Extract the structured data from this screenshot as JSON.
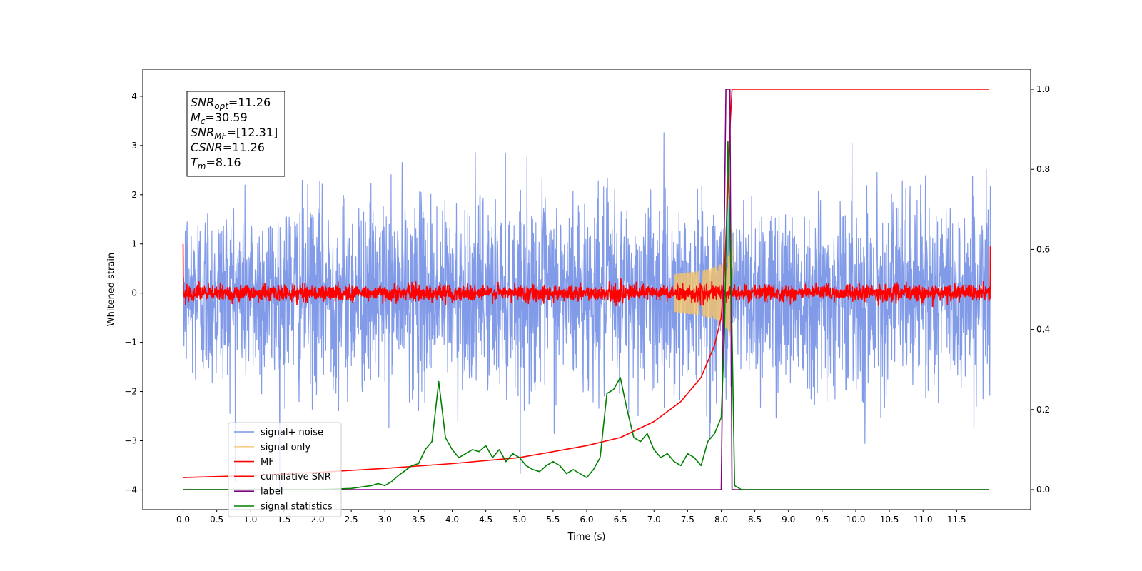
{
  "chart_data": {
    "type": "line",
    "title": "",
    "xlabel": "Time (s)",
    "ylabel": "Whitened strain",
    "xlim": [
      -0.6,
      12.6
    ],
    "ylim": [
      -4.4,
      4.55
    ],
    "y2lim": [
      -0.05,
      1.05
    ],
    "x_ticks": [
      "0.0",
      "0.5",
      "1.0",
      "1.5",
      "2.0",
      "2.5",
      "3.0",
      "3.5",
      "4.0",
      "4.5",
      "5.0",
      "5.5",
      "6.0",
      "6.5",
      "7.0",
      "7.5",
      "8.0",
      "8.5",
      "9.0",
      "9.5",
      "10.0",
      "10.5",
      "11.0",
      "11.5"
    ],
    "y_ticks": [
      "4",
      "3",
      "2",
      "1",
      "0",
      "−1",
      "−2",
      "−3",
      "−4"
    ],
    "y2_ticks": [
      "1.0",
      "0.8",
      "0.6",
      "0.4",
      "0.2",
      "0.0"
    ],
    "grid": false,
    "legend_position": "lower-left",
    "annotation": {
      "lines": [
        {
          "sym": "SNR",
          "sub": "opt",
          "value": "=11.26"
        },
        {
          "sym": "M",
          "sub": "c",
          "value": "=30.59"
        },
        {
          "sym": "SNR",
          "sub": "MF",
          "value": "=[12.31]"
        },
        {
          "sym": "CSNR",
          "sub": "",
          "value": "=11.26"
        },
        {
          "sym": "T",
          "sub": "m",
          "value": "=8.16"
        }
      ]
    },
    "series": [
      {
        "name": "signal+ noise",
        "axis": "left",
        "color": "#7b96e8",
        "kind": "noise",
        "x_range": [
          0,
          12
        ],
        "amplitude_std": 0.95
      },
      {
        "name": "signal only",
        "axis": "left",
        "color": "#f5c469",
        "kind": "chirp",
        "x_range": [
          7.3,
          8.2
        ],
        "peak_amplitude": 1.0
      },
      {
        "name": "MF",
        "axis": "left",
        "color": "#ff0000",
        "kind": "noise",
        "x_range": [
          0,
          12
        ],
        "amplitude_std": 0.08
      },
      {
        "name": "cumilative SNR",
        "axis": "right",
        "color": "#ff0000",
        "x": [
          0.0,
          1.0,
          2.0,
          3.0,
          4.0,
          5.0,
          6.0,
          6.5,
          7.0,
          7.4,
          7.7,
          7.9,
          8.0,
          8.05,
          8.1,
          8.13,
          8.16,
          9.0,
          10.0,
          11.0,
          11.98
        ],
        "y": [
          0.03,
          0.035,
          0.043,
          0.053,
          0.065,
          0.08,
          0.11,
          0.13,
          0.17,
          0.22,
          0.28,
          0.36,
          0.43,
          0.55,
          0.75,
          0.9,
          1.0,
          1.0,
          1.0,
          1.0,
          1.0
        ]
      },
      {
        "name": "label",
        "axis": "right",
        "color": "#800080",
        "x": [
          0.0,
          8.0,
          8.07,
          8.13,
          8.16,
          11.98
        ],
        "y": [
          0.0,
          0.0,
          1.0,
          1.0,
          0.0,
          0.0
        ]
      },
      {
        "name": "signal statistics",
        "axis": "right",
        "color": "#008000",
        "x": [
          0.0,
          1.0,
          2.0,
          2.5,
          2.8,
          2.9,
          3.0,
          3.1,
          3.2,
          3.4,
          3.5,
          3.6,
          3.7,
          3.8,
          3.9,
          4.0,
          4.1,
          4.2,
          4.3,
          4.4,
          4.5,
          4.6,
          4.7,
          4.8,
          4.9,
          5.0,
          5.1,
          5.2,
          5.3,
          5.4,
          5.5,
          5.6,
          5.7,
          5.8,
          5.9,
          6.0,
          6.1,
          6.2,
          6.3,
          6.4,
          6.5,
          6.6,
          6.7,
          6.8,
          6.9,
          7.0,
          7.1,
          7.2,
          7.3,
          7.4,
          7.5,
          7.6,
          7.7,
          7.8,
          7.9,
          8.0,
          8.05,
          8.1,
          8.15,
          8.2,
          8.3,
          9.0,
          10.0,
          11.0,
          11.98
        ],
        "y": [
          0.0,
          0.0,
          0.0,
          0.003,
          0.01,
          0.015,
          0.01,
          0.02,
          0.035,
          0.06,
          0.065,
          0.1,
          0.12,
          0.27,
          0.13,
          0.1,
          0.08,
          0.09,
          0.1,
          0.095,
          0.11,
          0.08,
          0.1,
          0.07,
          0.09,
          0.08,
          0.06,
          0.05,
          0.045,
          0.06,
          0.07,
          0.06,
          0.04,
          0.05,
          0.04,
          0.03,
          0.05,
          0.08,
          0.24,
          0.25,
          0.28,
          0.2,
          0.13,
          0.12,
          0.14,
          0.1,
          0.08,
          0.09,
          0.07,
          0.06,
          0.09,
          0.08,
          0.06,
          0.12,
          0.14,
          0.18,
          0.4,
          0.87,
          0.5,
          0.01,
          0.0,
          0.0,
          0.0,
          0.0,
          0.0
        ]
      }
    ]
  }
}
